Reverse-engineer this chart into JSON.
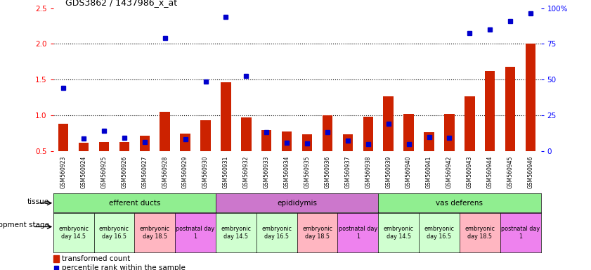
{
  "title": "GDS3862 / 1437986_x_at",
  "samples": [
    "GSM560923",
    "GSM560924",
    "GSM560925",
    "GSM560926",
    "GSM560927",
    "GSM560928",
    "GSM560929",
    "GSM560930",
    "GSM560931",
    "GSM560932",
    "GSM560933",
    "GSM560934",
    "GSM560935",
    "GSM560936",
    "GSM560937",
    "GSM560938",
    "GSM560939",
    "GSM560940",
    "GSM560941",
    "GSM560942",
    "GSM560943",
    "GSM560944",
    "GSM560945",
    "GSM560946"
  ],
  "red_bars": [
    0.88,
    0.62,
    0.63,
    0.63,
    0.72,
    1.05,
    0.75,
    0.93,
    1.46,
    0.97,
    0.8,
    0.78,
    0.74,
    1.0,
    0.74,
    0.98,
    1.27,
    1.02,
    0.77,
    1.02,
    1.27,
    1.62,
    1.68,
    2.0
  ],
  "blue_dots": [
    1.38,
    0.68,
    0.79,
    0.69,
    0.63,
    2.08,
    0.67,
    1.47,
    2.38,
    1.55,
    0.77,
    0.62,
    0.61,
    0.77,
    0.65,
    0.6,
    0.88,
    0.6,
    0.7,
    0.69,
    2.15,
    2.2,
    2.32,
    2.43
  ],
  "tissue_groups": [
    {
      "label": "efferent ducts",
      "start": 0,
      "end": 7,
      "color": "#90EE90"
    },
    {
      "label": "epididymis",
      "start": 8,
      "end": 15,
      "color": "#CC77CC"
    },
    {
      "label": "vas deferens",
      "start": 16,
      "end": 23,
      "color": "#90EE90"
    }
  ],
  "dev_stage_groups": [
    {
      "label": "embryonic\nday 14.5",
      "start": 0,
      "end": 1,
      "color": "#D0FFD0"
    },
    {
      "label": "embryonic\nday 16.5",
      "start": 2,
      "end": 3,
      "color": "#D0FFD0"
    },
    {
      "label": "embryonic\nday 18.5",
      "start": 4,
      "end": 5,
      "color": "#FFB6C1"
    },
    {
      "label": "postnatal day\n1",
      "start": 6,
      "end": 7,
      "color": "#EE82EE"
    },
    {
      "label": "embryonic\nday 14.5",
      "start": 8,
      "end": 9,
      "color": "#D0FFD0"
    },
    {
      "label": "embryonic\nday 16.5",
      "start": 10,
      "end": 11,
      "color": "#D0FFD0"
    },
    {
      "label": "embryonic\nday 18.5",
      "start": 12,
      "end": 13,
      "color": "#FFB6C1"
    },
    {
      "label": "postnatal day\n1",
      "start": 14,
      "end": 15,
      "color": "#EE82EE"
    },
    {
      "label": "embryonic\nday 14.5",
      "start": 16,
      "end": 17,
      "color": "#D0FFD0"
    },
    {
      "label": "embryonic\nday 16.5",
      "start": 18,
      "end": 19,
      "color": "#D0FFD0"
    },
    {
      "label": "embryonic\nday 18.5",
      "start": 20,
      "end": 21,
      "color": "#FFB6C1"
    },
    {
      "label": "postnatal day\n1",
      "start": 22,
      "end": 23,
      "color": "#EE82EE"
    }
  ],
  "ylim_left": [
    0.5,
    2.5
  ],
  "yticks_left": [
    0.5,
    1.0,
    1.5,
    2.0,
    2.5
  ],
  "hgrid_lines": [
    1.0,
    1.5,
    2.0
  ],
  "ylim_right": [
    0,
    100
  ],
  "yticks_right": [
    0,
    25,
    50,
    75,
    100
  ],
  "bar_color": "#CC2200",
  "dot_color": "#0000CC",
  "bar_width": 0.5,
  "legend_bar_label": "transformed count",
  "legend_dot_label": "percentile rank within the sample",
  "tissue_label": "tissue",
  "dev_label": "development stage"
}
